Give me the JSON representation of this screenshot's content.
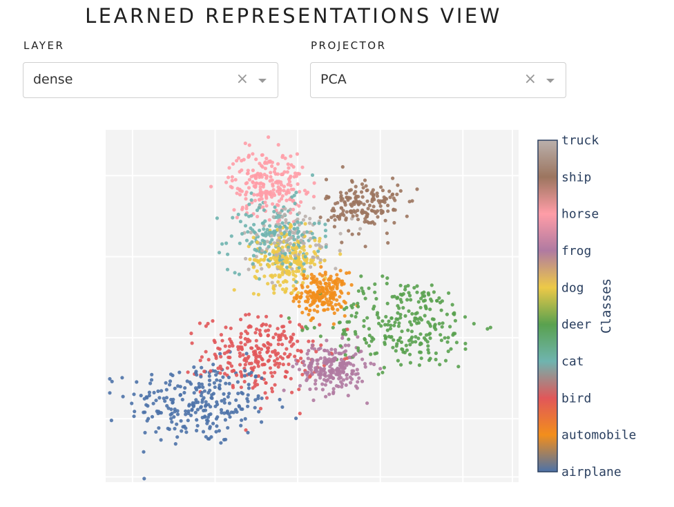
{
  "header": {
    "title": "LEARNED REPRESENTATIONS VIEW"
  },
  "controls": {
    "layer": {
      "label": "LAYER",
      "value": "dense"
    },
    "projector": {
      "label": "PROJECTOR",
      "value": "PCA"
    }
  },
  "icons": {
    "clear": "close-icon",
    "dropdown": "caret-down-icon"
  },
  "chart_data": {
    "type": "scatter",
    "title": "",
    "xlabel": "",
    "ylabel": "",
    "grid": true,
    "x_axis_tick_labels_visible": false,
    "y_axis_tick_labels_visible": false,
    "xlim": [
      -1.0,
      1.0
    ],
    "ylim": [
      -1.0,
      1.0
    ],
    "colorbar": {
      "title": "Classes",
      "tick_labels": [
        "airplane",
        "automobile",
        "bird",
        "cat",
        "deer",
        "dog",
        "frog",
        "horse",
        "ship",
        "truck"
      ],
      "colors": [
        "#4c72a8",
        "#f28e1c",
        "#e15759",
        "#6fb4af",
        "#59a14f",
        "#edc948",
        "#b07aa1",
        "#ff9da7",
        "#9c755f",
        "#bab0ac"
      ]
    },
    "series": [
      {
        "name": "airplane",
        "color": "#4c72a8",
        "center": [
          -0.55,
          -0.55
        ],
        "spread": [
          0.17,
          0.12
        ],
        "count": 260
      },
      {
        "name": "automobile",
        "color": "#f28e1c",
        "center": [
          0.05,
          0.07
        ],
        "spread": [
          0.06,
          0.06
        ],
        "count": 200
      },
      {
        "name": "bird",
        "color": "#e15759",
        "center": [
          -0.25,
          -0.28
        ],
        "spread": [
          0.14,
          0.11
        ],
        "count": 260
      },
      {
        "name": "cat",
        "color": "#6fb4af",
        "center": [
          -0.18,
          0.4
        ],
        "spread": [
          0.11,
          0.1
        ],
        "count": 180
      },
      {
        "name": "deer",
        "color": "#59a14f",
        "center": [
          0.45,
          -0.1
        ],
        "spread": [
          0.18,
          0.13
        ],
        "count": 260
      },
      {
        "name": "dog",
        "color": "#edc948",
        "center": [
          -0.12,
          0.26
        ],
        "spread": [
          0.08,
          0.08
        ],
        "count": 220
      },
      {
        "name": "frog",
        "color": "#b07aa1",
        "center": [
          0.1,
          -0.35
        ],
        "spread": [
          0.08,
          0.07
        ],
        "count": 220
      },
      {
        "name": "horse",
        "color": "#ff9da7",
        "center": [
          -0.22,
          0.7
        ],
        "spread": [
          0.09,
          0.09
        ],
        "count": 220
      },
      {
        "name": "ship",
        "color": "#9c755f",
        "center": [
          0.25,
          0.57
        ],
        "spread": [
          0.09,
          0.08
        ],
        "count": 170
      },
      {
        "name": "truck",
        "color": "#bab0ac",
        "center": [
          -0.1,
          0.38
        ],
        "spread": [
          0.12,
          0.1
        ],
        "count": 100
      }
    ]
  }
}
